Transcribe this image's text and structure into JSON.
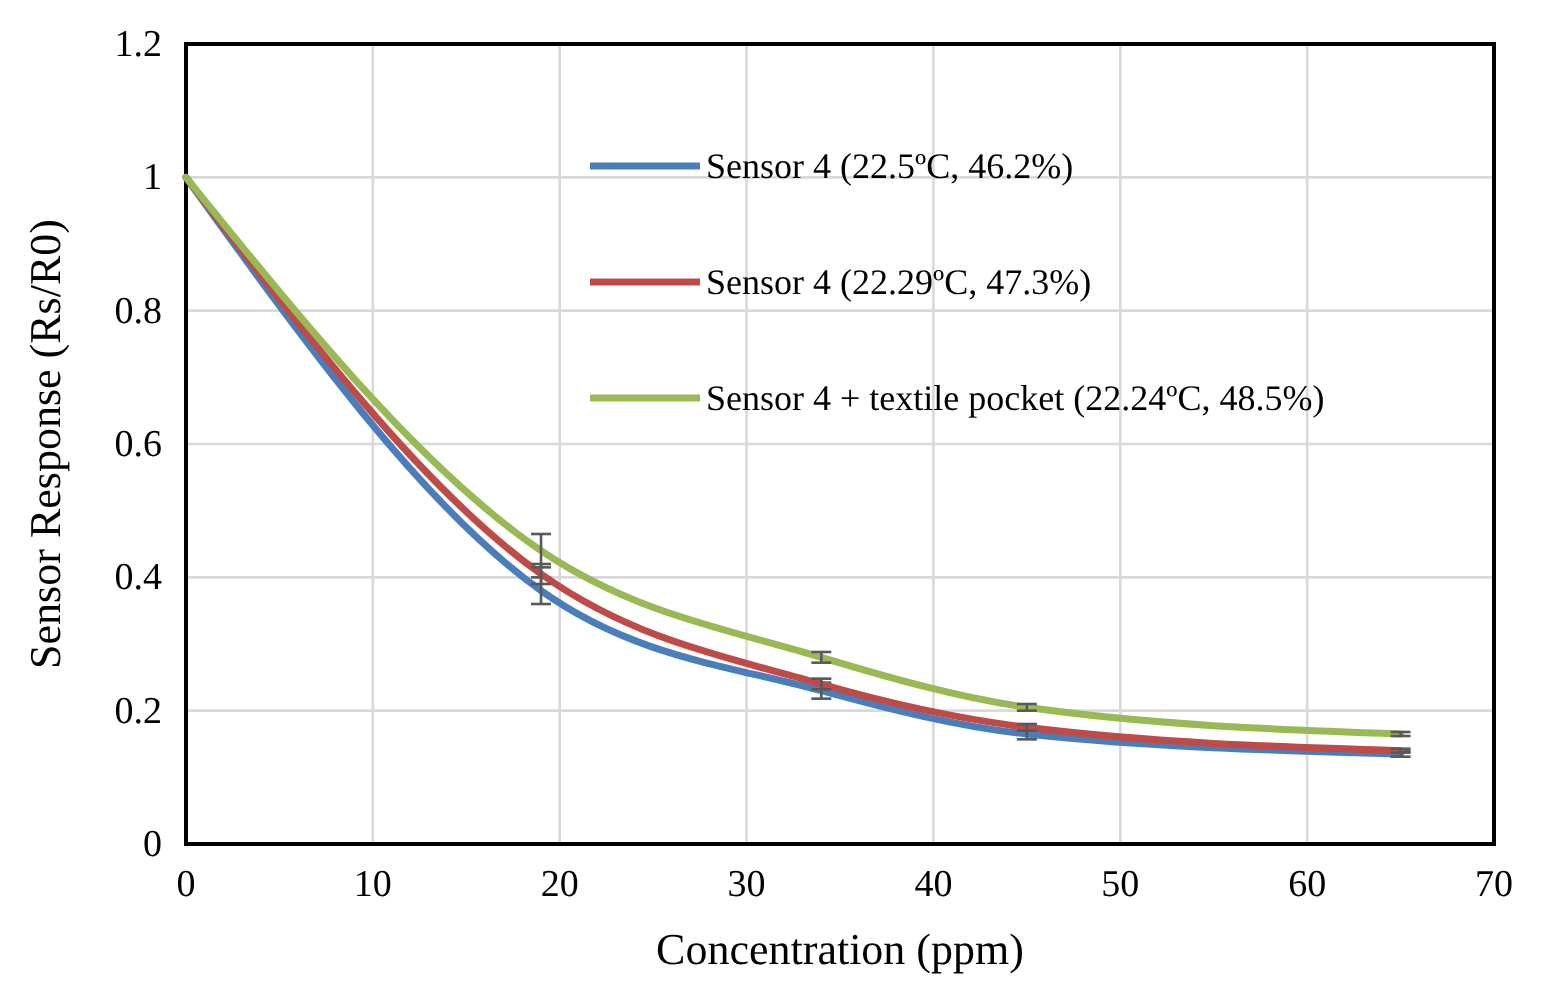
{
  "chart_data": {
    "type": "line",
    "xlabel": "Concentration (ppm)",
    "ylabel": "Sensor Response (Rs/R0)",
    "xlim": [
      0,
      70
    ],
    "xticks": [
      0,
      10,
      20,
      30,
      40,
      50,
      60,
      70
    ],
    "ylim": [
      0,
      1.2
    ],
    "yticks": [
      0,
      0.2,
      0.4,
      0.6,
      0.8,
      1,
      1.2
    ],
    "grid": true,
    "legend": "top right",
    "marker": "none",
    "line_style": "solid",
    "x": [
      0,
      19,
      34,
      45,
      65
    ],
    "series": [
      {
        "name": "Sensor 4 (22.5ºC, 46.2%)",
        "color": "#4a7ebb",
        "values": [
          1,
          0.38,
          0.23,
          0.165,
          0.135
        ],
        "errors": [
          null,
          0.02,
          0.012,
          0.008,
          0.004
        ]
      },
      {
        "name": "Sensor 4 (22.29ºC, 47.3%)",
        "color": "#be4b48",
        "values": [
          1,
          0.405,
          0.24,
          0.175,
          0.14
        ],
        "errors": [
          null,
          0.015,
          0.008,
          0.005,
          0.003
        ]
      },
      {
        "name": "Sensor 4 + textile pocket (22.24ºC, 48.5%)",
        "color": "#98b954",
        "values": [
          1,
          0.44,
          0.28,
          0.205,
          0.165
        ],
        "errors": [
          null,
          0.025,
          0.008,
          0.005,
          0.003
        ]
      }
    ]
  }
}
